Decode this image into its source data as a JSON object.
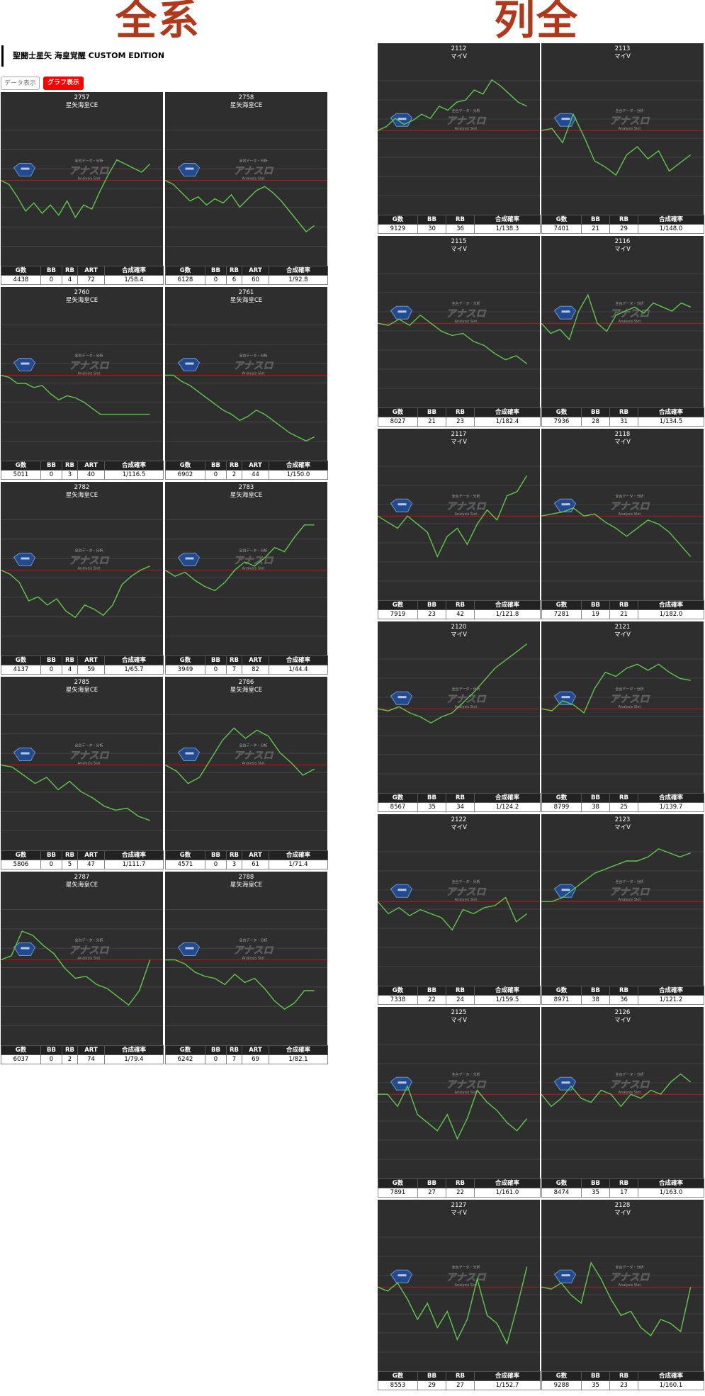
{
  "header": {
    "left_title": "全系",
    "right_title": "列全",
    "machine_name": "聖闘士星矢 海皇覚醒 CUSTOM EDITION",
    "tabs": [
      {
        "label": "データ表示",
        "active": false
      },
      {
        "label": "グラフ表示",
        "active": true
      }
    ]
  },
  "watermark": {
    "brand": "アナスロ",
    "top_text": "全台データ・分析",
    "sub_text": "Analysis Slot"
  },
  "colors": {
    "panel_bg": "#2e2e2e",
    "line": "#5fc84a",
    "baseline": "#b91818",
    "title": "#b0391b"
  },
  "left_columns": [
    "G数",
    "BB",
    "RB",
    "ART",
    "合成確率"
  ],
  "right_columns": [
    "G数",
    "BB",
    "RB",
    "合成確率"
  ],
  "left_panels": [
    {
      "num": "2757",
      "name": "星矢海皇CE",
      "stats": [
        "4438",
        "0",
        "4",
        "72",
        "1/58.4"
      ],
      "y": [
        0,
        -2,
        -8,
        -15,
        -11,
        -16,
        -12,
        -17,
        -10,
        -18,
        -12,
        -14,
        -5,
        3,
        10,
        8,
        6,
        4,
        8
      ]
    },
    {
      "num": "2758",
      "name": "星矢海皇CE",
      "stats": [
        "6128",
        "0",
        "6",
        "60",
        "1/92.8"
      ],
      "y": [
        0,
        -2,
        -6,
        -10,
        -8,
        -12,
        -9,
        -11,
        -7,
        -13,
        -9,
        -5,
        -3,
        -6,
        -10,
        -15,
        -20,
        -25,
        -22
      ]
    },
    {
      "num": "2760",
      "name": "星矢海皇CE",
      "stats": [
        "5011",
        "0",
        "3",
        "40",
        "1/116.5"
      ],
      "y": [
        0,
        -1,
        -4,
        -4,
        -6,
        -5,
        -9,
        -12,
        -10,
        -11,
        -13,
        -16,
        -19,
        -19,
        -19,
        -19,
        -19,
        -19,
        -19
      ]
    },
    {
      "num": "2761",
      "name": "星矢海皇CE",
      "stats": [
        "6902",
        "0",
        "2",
        "44",
        "1/150.0"
      ],
      "y": [
        0,
        0,
        -3,
        -5,
        -8,
        -11,
        -14,
        -17,
        -19,
        -22,
        -20,
        -17,
        -19,
        -22,
        -25,
        -28,
        -30,
        -32,
        -30
      ]
    },
    {
      "num": "2782",
      "name": "星矢海皇CE",
      "stats": [
        "4137",
        "0",
        "4",
        "59",
        "1/65.7"
      ],
      "y": [
        0,
        -2,
        -6,
        -15,
        -13,
        -17,
        -14,
        -20,
        -23,
        -17,
        -19,
        -22,
        -17,
        -7,
        -3,
        0,
        2
      ]
    },
    {
      "num": "2783",
      "name": "星矢海皇CE",
      "stats": [
        "3949",
        "0",
        "7",
        "82",
        "1/44.4"
      ],
      "y": [
        0,
        -3,
        -1,
        -5,
        -8,
        -10,
        -6,
        0,
        4,
        2,
        6,
        11,
        9,
        16,
        22,
        22
      ]
    },
    {
      "num": "2785",
      "name": "星矢海皇CE",
      "stats": [
        "5806",
        "0",
        "5",
        "47",
        "1/111.7"
      ],
      "y": [
        0,
        -1,
        -5,
        -9,
        -6,
        -12,
        -8,
        -13,
        -16,
        -20,
        -22,
        -21,
        -25,
        -27
      ]
    },
    {
      "num": "2786",
      "name": "星矢海皇CE",
      "stats": [
        "4571",
        "0",
        "3",
        "61",
        "1/71.4"
      ],
      "y": [
        0,
        -3,
        -9,
        -6,
        3,
        12,
        18,
        13,
        17,
        14,
        6,
        1,
        -5,
        -2
      ]
    },
    {
      "num": "2787",
      "name": "星矢海皇CE",
      "stats": [
        "6037",
        "0",
        "2",
        "74",
        "1/79.4"
      ],
      "y": [
        0,
        2,
        14,
        12,
        7,
        3,
        -4,
        -9,
        -8,
        -12,
        -14,
        -18,
        -22,
        -15,
        0
      ]
    },
    {
      "num": "2788",
      "name": "星矢海皇CE",
      "stats": [
        "6242",
        "0",
        "7",
        "69",
        "1/82.1"
      ],
      "y": [
        0,
        0,
        -2,
        -6,
        -8,
        -9,
        -12,
        -7,
        -11,
        -9,
        -14,
        -20,
        -24,
        -21,
        -15,
        -15
      ]
    }
  ],
  "right_panels": [
    {
      "num": "2112",
      "name": "マイV",
      "stats": [
        "9129",
        "30",
        "36",
        "1/138.3"
      ],
      "y": [
        0,
        2,
        6,
        3,
        5,
        8,
        6,
        12,
        10,
        14,
        15,
        20,
        18,
        25,
        22,
        18,
        14,
        12
      ]
    },
    {
      "num": "2113",
      "name": "マイV",
      "stats": [
        "7401",
        "21",
        "29",
        "1/148.0"
      ],
      "y": [
        0,
        1,
        -6,
        8,
        -3,
        -15,
        -18,
        -22,
        -12,
        -8,
        -14,
        -10,
        -20,
        -16,
        -12
      ]
    },
    {
      "num": "2115",
      "name": "マイV",
      "stats": [
        "8027",
        "21",
        "23",
        "1/182.4"
      ],
      "y": [
        0,
        -1,
        2,
        -1,
        4,
        0,
        -4,
        -6,
        -5,
        -9,
        -11,
        -15,
        -18,
        -16,
        -20
      ]
    },
    {
      "num": "2116",
      "name": "マイV",
      "stats": [
        "7936",
        "28",
        "31",
        "1/134.5"
      ],
      "y": [
        0,
        -5,
        -3,
        -8,
        6,
        14,
        0,
        -4,
        4,
        6,
        8,
        5,
        10,
        8,
        6,
        10,
        8
      ]
    },
    {
      "num": "2117",
      "name": "マイV",
      "stats": [
        "7919",
        "23",
        "42",
        "1/121.8"
      ],
      "y": [
        0,
        -3,
        -6,
        0,
        -4,
        -8,
        -20,
        -10,
        -6,
        -14,
        -4,
        3,
        -2,
        10,
        12,
        20
      ]
    },
    {
      "num": "2118",
      "name": "マイV",
      "stats": [
        "7281",
        "19",
        "21",
        "1/182.0"
      ],
      "y": [
        0,
        1,
        2,
        4,
        0,
        1,
        -3,
        -6,
        -10,
        -6,
        -2,
        -4,
        -8,
        -14,
        -20
      ]
    },
    {
      "num": "2120",
      "name": "マイV",
      "stats": [
        "8567",
        "35",
        "34",
        "1/124.2"
      ],
      "y": [
        0,
        -1,
        1,
        -2,
        -4,
        -7,
        -4,
        -2,
        3,
        8,
        14,
        20,
        24,
        28,
        32
      ]
    },
    {
      "num": "2121",
      "name": "マイV",
      "stats": [
        "8799",
        "38",
        "25",
        "1/139.7"
      ],
      "y": [
        0,
        -1,
        4,
        2,
        -2,
        10,
        18,
        16,
        20,
        22,
        19,
        22,
        18,
        15,
        14
      ]
    },
    {
      "num": "2122",
      "name": "マイV",
      "stats": [
        "7338",
        "22",
        "24",
        "1/159.5"
      ],
      "y": [
        0,
        -6,
        -3,
        -7,
        -4,
        -6,
        -8,
        -14,
        -4,
        -6,
        -3,
        -2,
        2,
        -10,
        -6
      ]
    },
    {
      "num": "2123",
      "name": "マイV",
      "stats": [
        "8971",
        "38",
        "36",
        "1/121.2"
      ],
      "y": [
        0,
        0,
        2,
        6,
        10,
        14,
        16,
        18,
        20,
        20,
        22,
        26,
        24,
        22,
        24
      ]
    },
    {
      "num": "2125",
      "name": "マイV",
      "stats": [
        "7891",
        "27",
        "22",
        "1/161.0"
      ],
      "y": [
        0,
        0,
        -6,
        4,
        -10,
        -14,
        -18,
        -10,
        -22,
        -12,
        2,
        -4,
        -8,
        -14,
        -18,
        -12
      ]
    },
    {
      "num": "2126",
      "name": "マイV",
      "stats": [
        "8474",
        "35",
        "17",
        "1/163.0"
      ],
      "y": [
        0,
        -6,
        -2,
        4,
        -2,
        -4,
        2,
        0,
        -6,
        0,
        -2,
        2,
        0,
        6,
        10,
        6
      ]
    },
    {
      "num": "2127",
      "name": "マイV",
      "stats": [
        "8553",
        "29",
        "27",
        "1/152.7"
      ],
      "y": [
        0,
        -2,
        2,
        -6,
        -16,
        -8,
        -20,
        -12,
        -26,
        -16,
        4,
        -14,
        -18,
        -28,
        -10,
        10
      ]
    },
    {
      "num": "2128",
      "name": "マイV",
      "stats": [
        "9288",
        "35",
        "23",
        "1/160.1"
      ],
      "y": [
        0,
        -1,
        2,
        -4,
        -8,
        12,
        4,
        -6,
        -14,
        -12,
        -20,
        -24,
        -16,
        -18,
        -22,
        0
      ]
    }
  ]
}
